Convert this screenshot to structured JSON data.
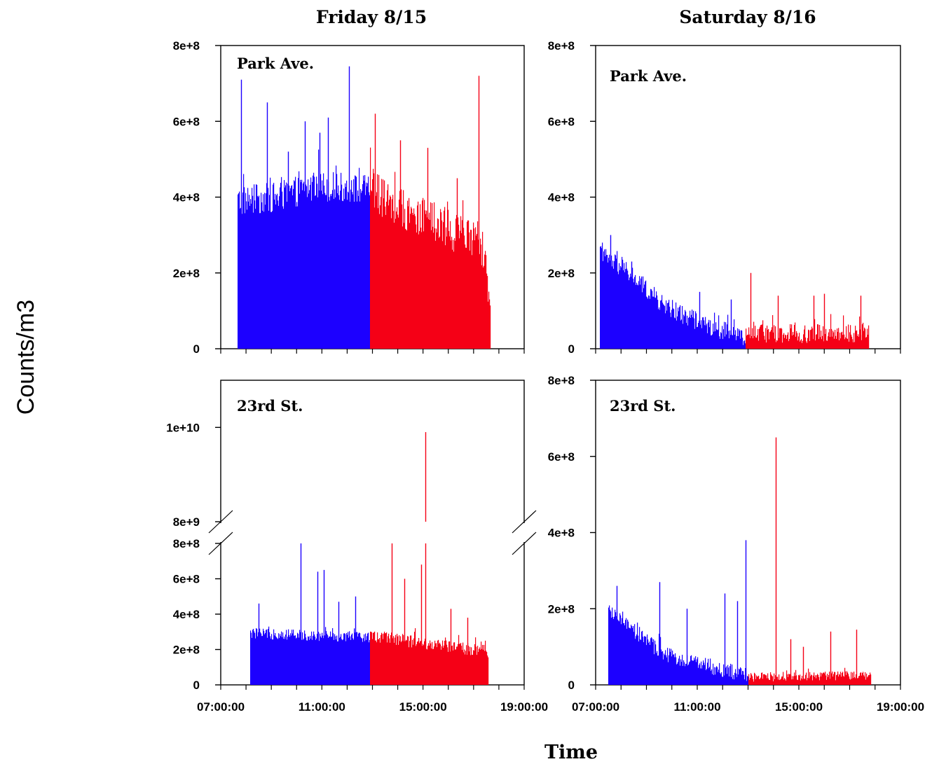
{
  "figure": {
    "ylabel": "Counts/m3",
    "xlabel": "Time",
    "columns": [
      "Friday 8/15",
      "Saturday 8/16"
    ],
    "series_colors": {
      "before": "#1c00ff",
      "after": "#f50016"
    },
    "axis_color": "#000000",
    "background": "#ffffff"
  },
  "chart_data": [
    {
      "type": "bar",
      "panel": "friday-park-ave",
      "title": "Friday 8/15",
      "label": "Park Ave.",
      "xlim": [
        "07:00:00",
        "19:00:00"
      ],
      "ylim": [
        0,
        800000000
      ],
      "yticks": [
        "0",
        "2e+8",
        "4e+8",
        "6e+8",
        "8e+8"
      ],
      "grid": false,
      "series": [
        {
          "color": "#1c00ff",
          "x_range": [
            "07:40:00",
            "12:55:00"
          ],
          "base_profile": [
            [
              0,
              390000000
            ],
            [
              0.3,
              400000000
            ],
            [
              0.6,
              430000000
            ],
            [
              1.0,
              420000000
            ]
          ],
          "noise": 40000000,
          "spikes": [
            [
              "07:48:00",
              710000000
            ],
            [
              "08:50:00",
              650000000
            ],
            [
              "09:40:00",
              520000000
            ],
            [
              "10:20:00",
              600000000
            ],
            [
              "10:55:00",
              570000000
            ],
            [
              "11:15:00",
              610000000
            ],
            [
              "12:05:00",
              745000000
            ]
          ]
        },
        {
          "color": "#f50016",
          "x_range": [
            "12:55:00",
            "17:40:00"
          ],
          "base_profile": [
            [
              0,
              420000000
            ],
            [
              0.4,
              350000000
            ],
            [
              0.85,
              290000000
            ],
            [
              0.96,
              250000000
            ],
            [
              1.0,
              80000000
            ]
          ],
          "noise": 55000000,
          "spikes": [
            [
              "13:05:00",
              620000000
            ],
            [
              "14:05:00",
              550000000
            ],
            [
              "15:10:00",
              530000000
            ],
            [
              "16:20:00",
              450000000
            ],
            [
              "17:12:00",
              720000000
            ]
          ]
        }
      ]
    },
    {
      "type": "bar",
      "panel": "saturday-park-ave",
      "title": "Saturday 8/16",
      "label": "Park Ave.",
      "xlim": [
        "07:00:00",
        "19:00:00"
      ],
      "ylim": [
        0,
        800000000
      ],
      "yticks": [
        "0",
        "2e+8",
        "4e+8",
        "6e+8",
        "8e+8"
      ],
      "grid": false,
      "series": [
        {
          "color": "#1c00ff",
          "x_range": [
            "07:10:00",
            "12:55:00"
          ],
          "base_profile": [
            [
              0,
              250000000
            ],
            [
              0.2,
              200000000
            ],
            [
              0.45,
              110000000
            ],
            [
              0.75,
              60000000
            ],
            [
              1.0,
              30000000
            ]
          ],
          "noise": 25000000,
          "spikes": [
            [
              "07:35:00",
              300000000
            ],
            [
              "08:25:00",
              230000000
            ],
            [
              "11:05:00",
              150000000
            ],
            [
              "12:20:00",
              130000000
            ]
          ]
        },
        {
          "color": "#f50016",
          "x_range": [
            "12:55:00",
            "17:45:00"
          ],
          "base_profile": [
            [
              0,
              40000000
            ],
            [
              1.0,
              40000000
            ]
          ],
          "noise": 25000000,
          "spikes": [
            [
              "13:05:00",
              200000000
            ],
            [
              "14:10:00",
              140000000
            ],
            [
              "15:35:00",
              140000000
            ],
            [
              "16:00:00",
              145000000
            ],
            [
              "17:25:00",
              140000000
            ]
          ]
        }
      ]
    },
    {
      "type": "bar",
      "panel": "friday-23rd-st",
      "label": "23rd St.",
      "xlim": [
        "07:00:00",
        "19:00:00"
      ],
      "axis_break": {
        "lower_ylim": [
          0,
          800000000
        ],
        "upper_ylim": [
          8000000000,
          11000000000
        ]
      },
      "yticks": [
        "0",
        "2e+8",
        "4e+8",
        "6e+8",
        "8e+8",
        "8e+9",
        "1e+10"
      ],
      "xticks": [
        "07:00:00",
        "11:00:00",
        "15:00:00",
        "19:00:00"
      ],
      "grid": false,
      "series": [
        {
          "color": "#1c00ff",
          "x_range": [
            "08:10:00",
            "12:55:00"
          ],
          "base_profile": [
            [
              0,
              290000000
            ],
            [
              0.5,
              280000000
            ],
            [
              1.0,
              270000000
            ]
          ],
          "noise": 30000000,
          "spikes": [
            [
              "08:30:00",
              460000000
            ],
            [
              "10:10:00",
              800000000
            ],
            [
              "10:50:00",
              640000000
            ],
            [
              "11:05:00",
              650000000
            ],
            [
              "11:40:00",
              470000000
            ],
            [
              "12:20:00",
              500000000
            ]
          ]
        },
        {
          "color": "#f50016",
          "x_range": [
            "12:55:00",
            "17:35:00"
          ],
          "base_profile": [
            [
              0,
              280000000
            ],
            [
              0.5,
              230000000
            ],
            [
              1.0,
              190000000
            ]
          ],
          "noise": 35000000,
          "spikes": [
            [
              "13:45:00",
              800000000
            ],
            [
              "14:15:00",
              600000000
            ],
            [
              "14:55:00",
              680000000
            ],
            [
              "15:05:00",
              9900000000
            ],
            [
              "16:05:00",
              430000000
            ],
            [
              "16:45:00",
              380000000
            ]
          ]
        }
      ]
    },
    {
      "type": "bar",
      "panel": "saturday-23rd-st",
      "label": "23rd St.",
      "xlim": [
        "07:00:00",
        "19:00:00"
      ],
      "ylim": [
        0,
        800000000
      ],
      "yticks": [
        "0",
        "2e+8",
        "4e+8",
        "6e+8",
        "8e+8"
      ],
      "xticks": [
        "07:00:00",
        "11:00:00",
        "15:00:00",
        "19:00:00"
      ],
      "grid": false,
      "series": [
        {
          "color": "#1c00ff",
          "x_range": [
            "07:30:00",
            "13:00:00"
          ],
          "base_profile": [
            [
              0,
              190000000
            ],
            [
              0.15,
              150000000
            ],
            [
              0.4,
              80000000
            ],
            [
              0.7,
              50000000
            ],
            [
              1.0,
              25000000
            ]
          ],
          "noise": 20000000,
          "spikes": [
            [
              "07:50:00",
              260000000
            ],
            [
              "09:30:00",
              270000000
            ],
            [
              "10:35:00",
              200000000
            ],
            [
              "12:05:00",
              240000000
            ],
            [
              "12:35:00",
              220000000
            ],
            [
              "12:55:00",
              380000000
            ]
          ]
        },
        {
          "color": "#f50016",
          "x_range": [
            "13:00:00",
            "17:50:00"
          ],
          "base_profile": [
            [
              0,
              20000000
            ],
            [
              1.0,
              25000000
            ]
          ],
          "noise": 12000000,
          "spikes": [
            [
              "14:05:00",
              650000000
            ],
            [
              "14:40:00",
              120000000
            ],
            [
              "15:10:00",
              100000000
            ],
            [
              "16:15:00",
              140000000
            ],
            [
              "17:15:00",
              145000000
            ]
          ]
        }
      ]
    }
  ]
}
